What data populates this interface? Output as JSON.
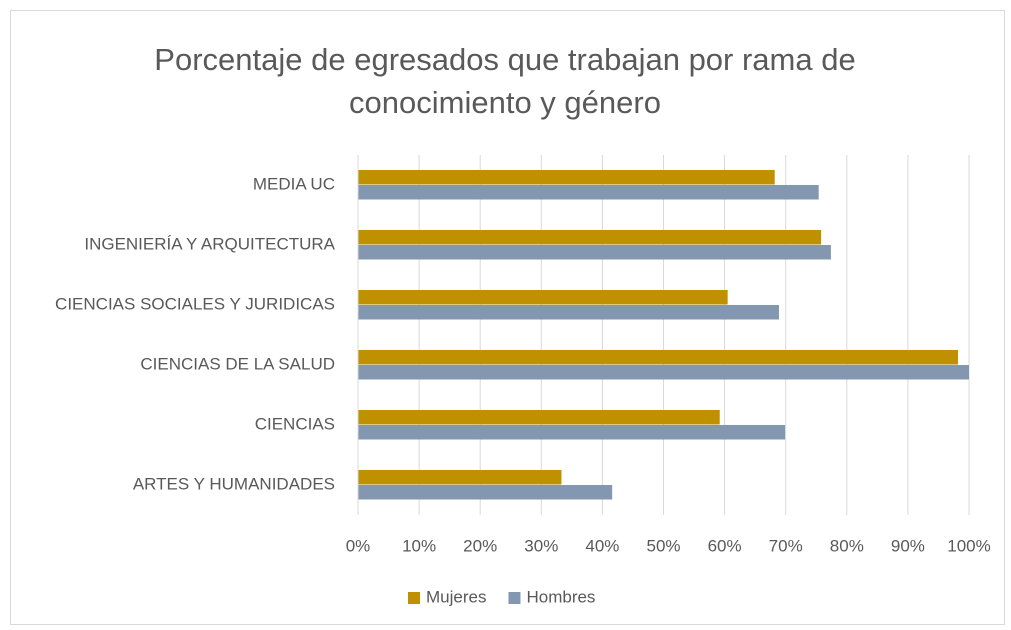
{
  "chart_data": {
    "type": "hbar",
    "title": "Porcentaje de egresados que trabajan por rama de conocimiento y género",
    "categories": [
      "MEDIA UC",
      "INGENIERÍA Y ARQUITECTURA",
      "CIENCIAS SOCIALES Y JURIDICAS",
      "CIENCIAS DE LA SALUD",
      "CIENCIAS",
      "ARTES Y HUMANIDADES"
    ],
    "series": [
      {
        "name": "Mujeres",
        "color": "#bf9000",
        "values": [
          68.2,
          75.8,
          60.5,
          98.2,
          59.2,
          33.3
        ]
      },
      {
        "name": "Hombres",
        "color": "#8497b0",
        "values": [
          75.4,
          77.4,
          68.9,
          100,
          69.9,
          41.6
        ]
      }
    ],
    "xlim": [
      0,
      100
    ],
    "xticks": [
      {
        "value": 0,
        "label": "0%"
      },
      {
        "value": 10,
        "label": "10%"
      },
      {
        "value": 20,
        "label": "20%"
      },
      {
        "value": 30,
        "label": "30%"
      },
      {
        "value": 40,
        "label": "40%"
      },
      {
        "value": 50,
        "label": "50%"
      },
      {
        "value": 60,
        "label": "60%"
      },
      {
        "value": 70,
        "label": "70%"
      },
      {
        "value": 80,
        "label": "80%"
      },
      {
        "value": 90,
        "label": "90%"
      },
      {
        "value": 100,
        "label": "100%"
      }
    ],
    "grid": true,
    "legend": "bottom"
  }
}
